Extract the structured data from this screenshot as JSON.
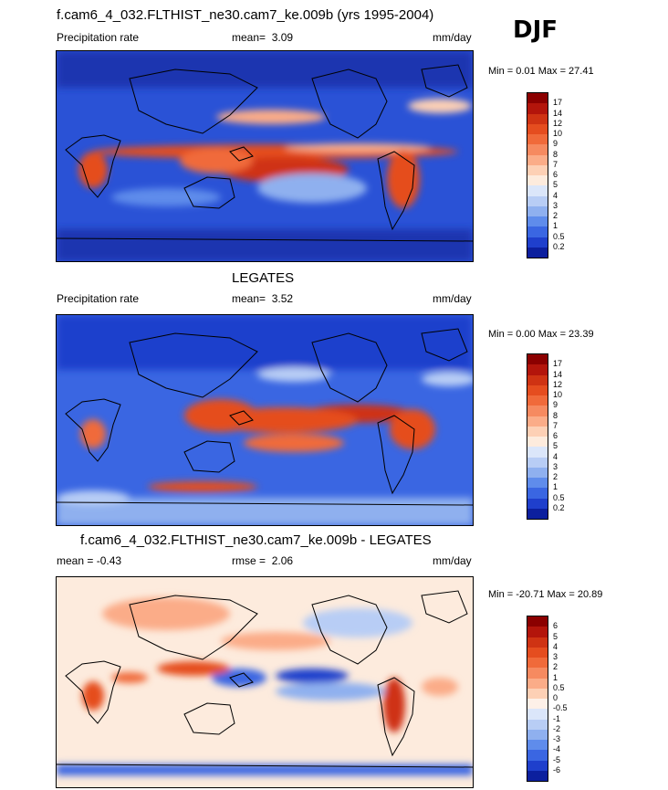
{
  "season": "DJF",
  "panels": [
    {
      "title": "f.cam6_4_032.FLTHIST_ne30.cam7_ke.009b (yrs 1995-2004)",
      "left_label": "Precipitation rate",
      "stat_label": "mean=",
      "stat_value": "3.09",
      "units": "mm/day",
      "minmax": "Min =   0.01 Max =  27.41",
      "colorbar_labels": [
        "17",
        "14",
        "12",
        "10",
        "9",
        "8",
        "7",
        "6",
        "5",
        "4",
        "3",
        "2",
        "1",
        "0.5",
        "0.2"
      ],
      "colorbar_colors": [
        "#8b0000",
        "#b3150b",
        "#cf3313",
        "#e54d1f",
        "#f06a3a",
        "#f68a60",
        "#fbac88",
        "#fdd0b5",
        "#fdebdd",
        "#dbe6fa",
        "#b8cdf5",
        "#8fb0ef",
        "#5f8ceb",
        "#3a66e2",
        "#1f3fcc",
        "#0c1f9e"
      ]
    },
    {
      "title": "LEGATES",
      "left_label": "Precipitation rate",
      "stat_label": "mean=",
      "stat_value": "3.52",
      "units": "mm/day",
      "minmax": "Min =   0.00 Max =  23.39",
      "colorbar_labels": [
        "17",
        "14",
        "12",
        "10",
        "9",
        "8",
        "7",
        "6",
        "5",
        "4",
        "3",
        "2",
        "1",
        "0.5",
        "0.2"
      ],
      "colorbar_colors": [
        "#8b0000",
        "#b3150b",
        "#cf3313",
        "#e54d1f",
        "#f06a3a",
        "#f68a60",
        "#fbac88",
        "#fdd0b5",
        "#fdebdd",
        "#dbe6fa",
        "#b8cdf5",
        "#8fb0ef",
        "#5f8ceb",
        "#3a66e2",
        "#1f3fcc",
        "#0c1f9e"
      ]
    },
    {
      "title": "f.cam6_4_032.FLTHIST_ne30.cam7_ke.009b - LEGATES",
      "left_label": "mean =  -0.43",
      "stat_label": "rmse =",
      "stat_value": "2.06",
      "units": "mm/day",
      "minmax": "Min = -20.71 Max =  20.89",
      "colorbar_labels": [
        "6",
        "5",
        "4",
        "3",
        "2",
        "1",
        "0.5",
        "0",
        "-0.5",
        "-1",
        "-2",
        "-3",
        "-4",
        "-5",
        "-6"
      ],
      "colorbar_colors": [
        "#8b0000",
        "#b3150b",
        "#cf3313",
        "#e54d1f",
        "#f06a3a",
        "#f68a60",
        "#fbac88",
        "#fdd0b5",
        "#fdf0e8",
        "#dbe6fa",
        "#b8cdf5",
        "#8fb0ef",
        "#5f8ceb",
        "#3a66e2",
        "#1f3fcc",
        "#0c1f9e"
      ]
    }
  ]
}
